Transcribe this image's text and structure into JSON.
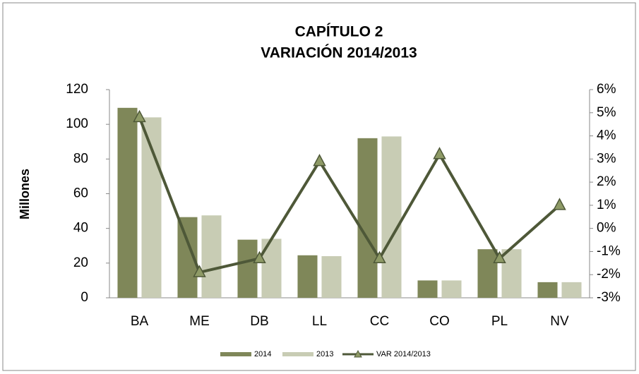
{
  "chart_data": {
    "type": "bar-line",
    "title": [
      "CAPÍTULO 2",
      "VARIACIÓN 2014/2013"
    ],
    "ylabel": "Millones",
    "categories": [
      "BA",
      "ME",
      "DB",
      "LL",
      "CC",
      "CO",
      "PL",
      "NV"
    ],
    "series": [
      {
        "name": "2014",
        "color": "#7f8759",
        "type": "bar",
        "values": [
          109.5,
          46.5,
          33.5,
          24.5,
          92,
          10,
          28,
          9
        ]
      },
      {
        "name": "2013",
        "color": "#c8ccb4",
        "type": "bar",
        "values": [
          104,
          47.5,
          34,
          24,
          93,
          10,
          28,
          9
        ]
      },
      {
        "name": "VAR 2014/2013",
        "color": "#4e5838",
        "type": "line",
        "axis": "y2",
        "values": [
          4.8,
          -1.9,
          -1.3,
          2.9,
          -1.3,
          3.2,
          -1.3,
          1
        ]
      }
    ],
    "ylim": [
      0,
      120
    ],
    "yticks": [
      0,
      20,
      40,
      60,
      80,
      100,
      120
    ],
    "y2lim": [
      -3,
      6
    ],
    "y2ticks": [
      {
        "value": -3,
        "label": "-3%"
      },
      {
        "value": -2,
        "label": "-2%"
      },
      {
        "value": -1,
        "label": "-1%"
      },
      {
        "value": 0,
        "label": "0%"
      },
      {
        "value": 1,
        "label": "1%"
      },
      {
        "value": 2,
        "label": "2%"
      },
      {
        "value": 3,
        "label": "3%"
      },
      {
        "value": 4,
        "label": "4%"
      },
      {
        "value": 5,
        "label": "5%"
      },
      {
        "value": 6,
        "label": "6%"
      }
    ],
    "legend": "bottom"
  }
}
